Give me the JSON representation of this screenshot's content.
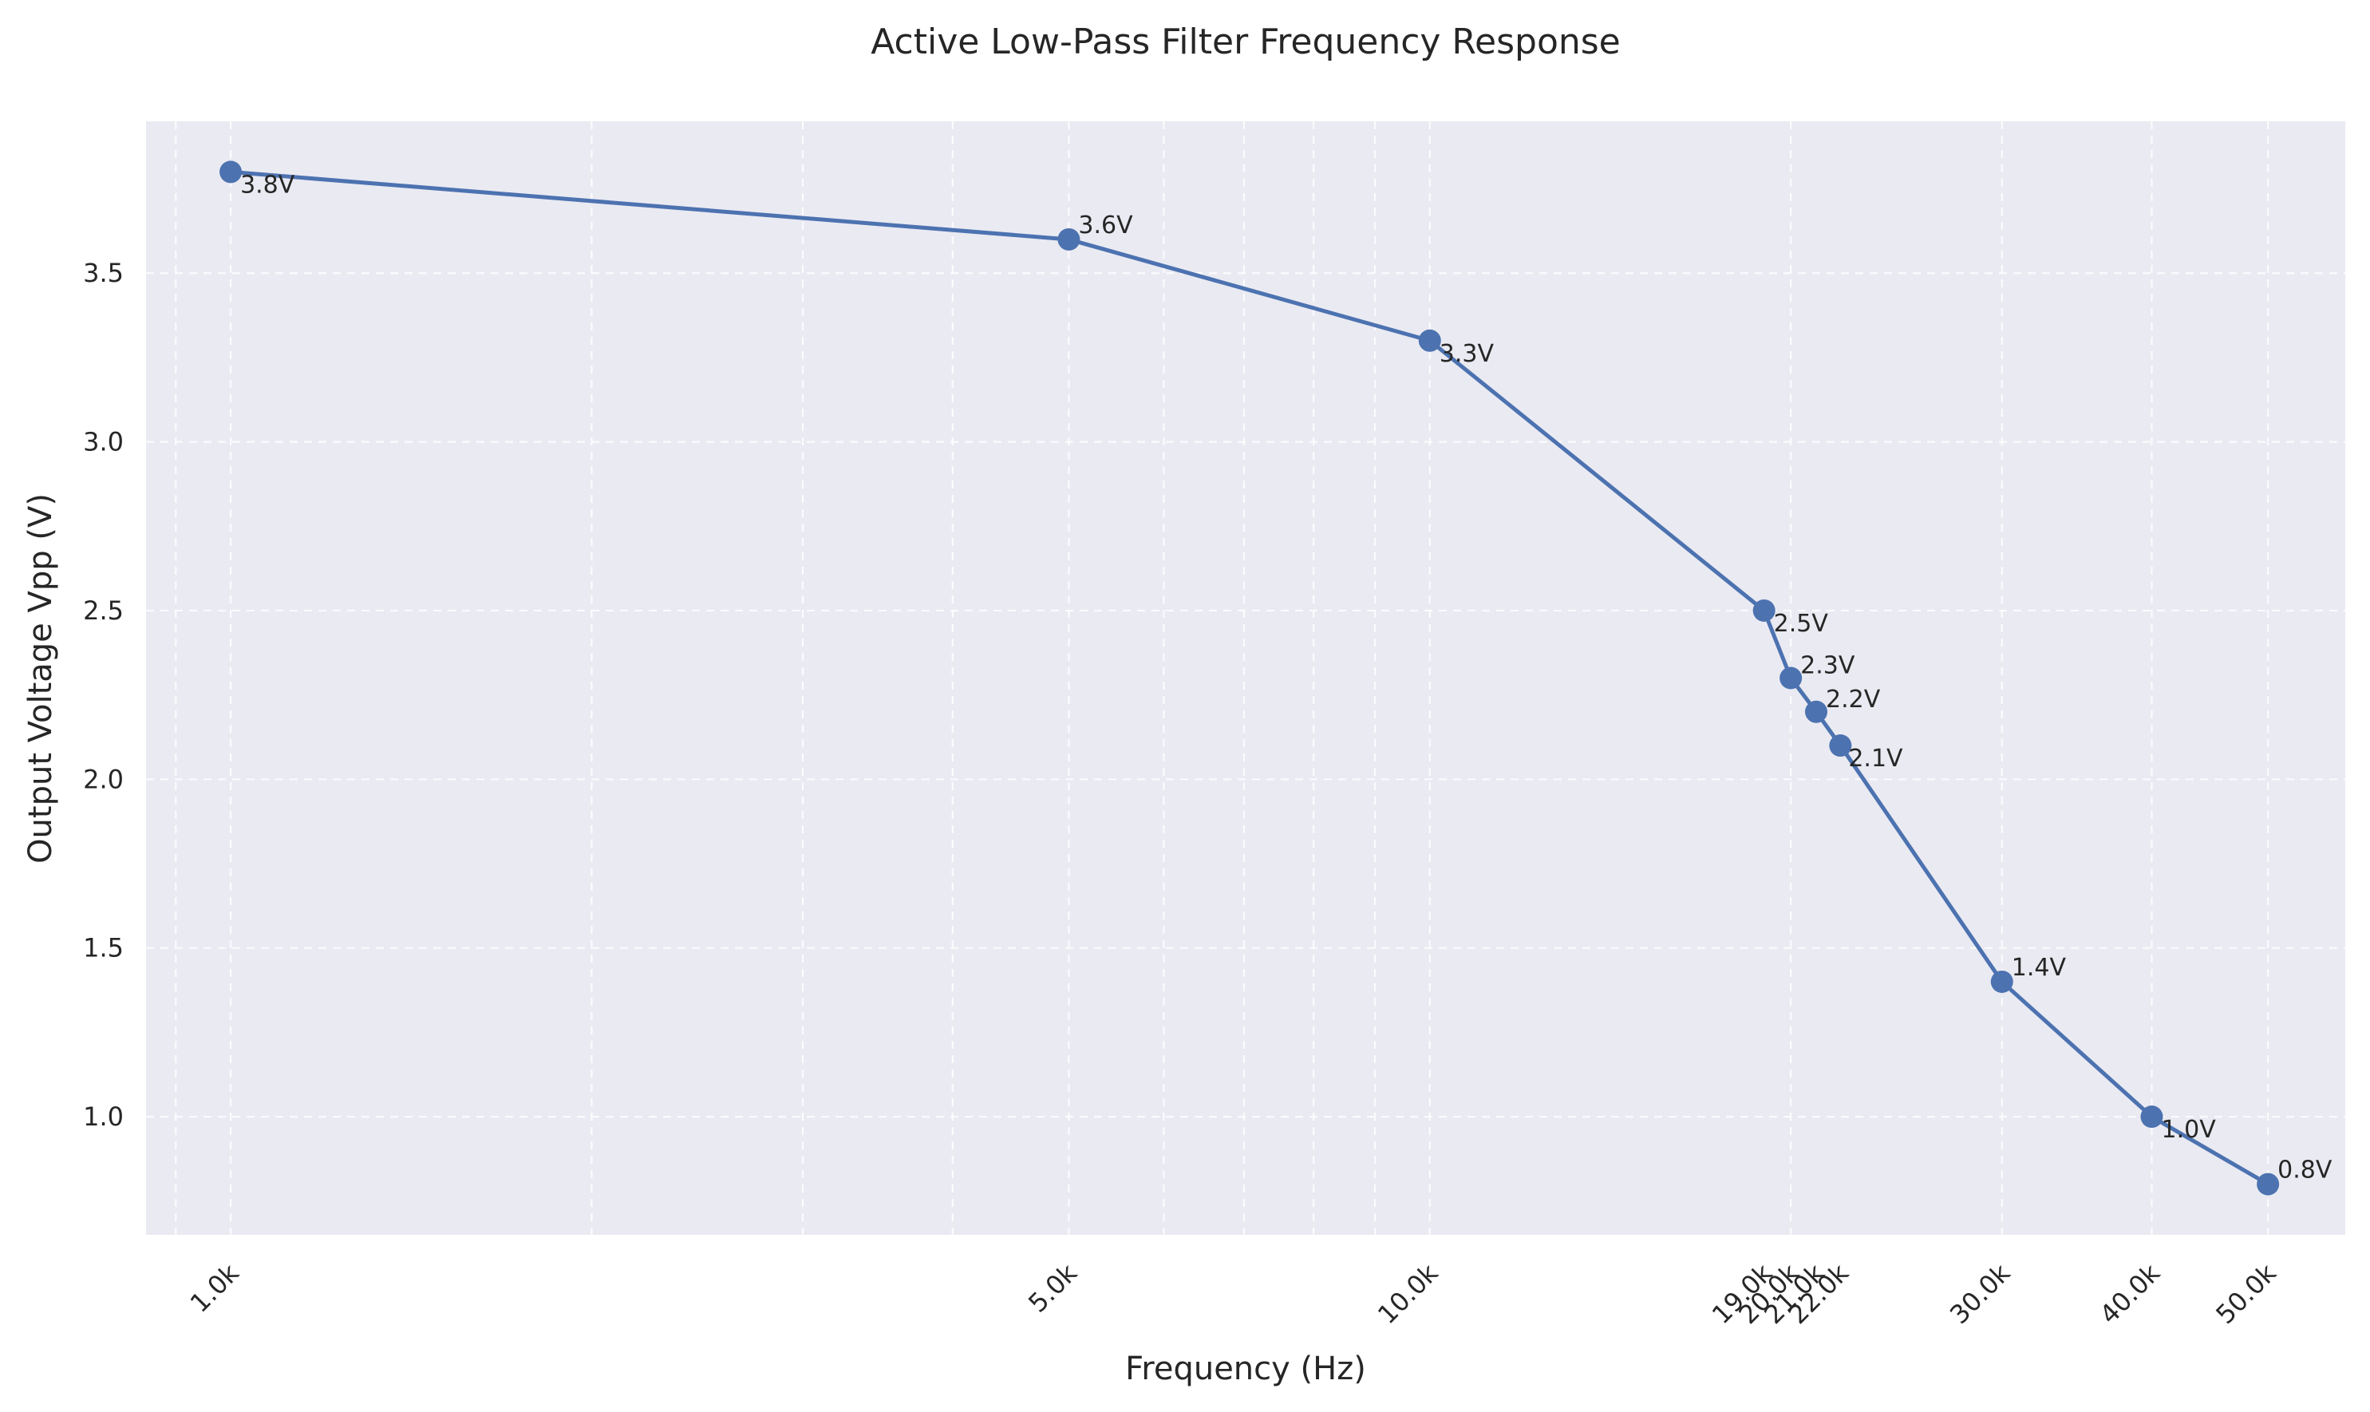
{
  "chart_data": {
    "type": "line",
    "title": "Active Low-Pass Filter Frequency Response",
    "xlabel": "Frequency (Hz)",
    "ylabel": "Output Voltage Vpp (V)",
    "x_scale": "log",
    "xlim": [
      850,
      58000
    ],
    "ylim": [
      0.65,
      3.95
    ],
    "grid": true,
    "x": [
      1000,
      5000,
      10000,
      19000,
      20000,
      21000,
      22000,
      30000,
      40000,
      50000
    ],
    "x_tick_labels": [
      "1.0k",
      "5.0k",
      "10.0k",
      "19.0k",
      "20.0k",
      "21.0k",
      "22.0k",
      "30.0k",
      "40.0k",
      "50.0k"
    ],
    "y_ticks": [
      1.0,
      1.5,
      2.0,
      2.5,
      3.0,
      3.5
    ],
    "y_tick_labels": [
      "1.0",
      "1.5",
      "2.0",
      "2.5",
      "3.0",
      "3.5"
    ],
    "series": [
      {
        "values": [
          3.8,
          3.6,
          3.3,
          2.5,
          2.3,
          2.2,
          2.1,
          1.4,
          1.0,
          0.8
        ],
        "data_labels": [
          "3.8V",
          "3.6V",
          "3.3V",
          "2.5V",
          "2.3V",
          "2.2V",
          "2.1V",
          "1.4V",
          "1.0V",
          "0.8V"
        ]
      }
    ],
    "colors": {
      "line": "#4c72b0",
      "plot_background": "#eaeaf2",
      "grid": "#ffffff"
    }
  }
}
